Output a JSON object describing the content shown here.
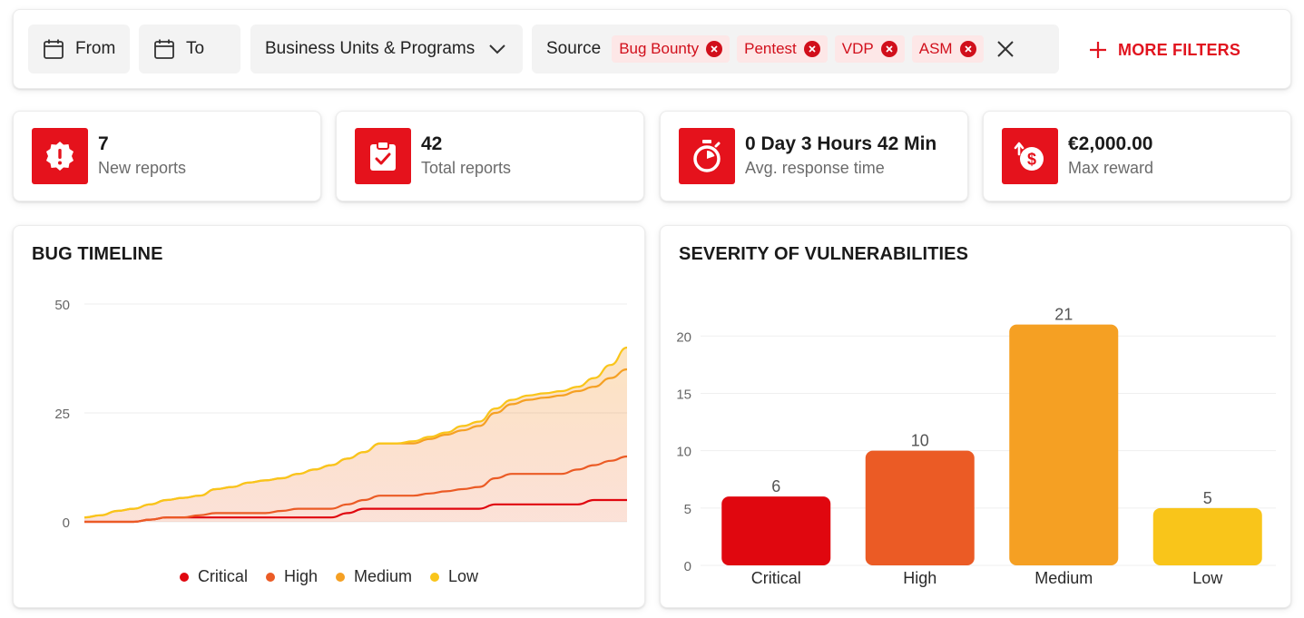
{
  "colors": {
    "accent": "#e5121c",
    "critical": "#e0070f",
    "high": "#eb5b25",
    "medium": "#f5a023",
    "low": "#f9c51a"
  },
  "filters": {
    "from_label": "From",
    "to_label": "To",
    "business_units_label": "Business Units & Programs",
    "source_label": "Source",
    "source_tags": [
      "Bug Bounty",
      "Pentest",
      "VDP",
      "ASM"
    ],
    "more_filters_label": "MORE FILTERS"
  },
  "stats": [
    {
      "value": "7",
      "label": "New reports",
      "icon": "alert-badge-icon"
    },
    {
      "value": "42",
      "label": "Total reports",
      "icon": "clipboard-check-icon"
    },
    {
      "value": "0 Day 3 Hours 42 Min",
      "label": "Avg. response time",
      "icon": "stopwatch-icon"
    },
    {
      "value": "€2,000.00",
      "label": "Max reward",
      "icon": "dollar-coin-icon"
    }
  ],
  "timeline": {
    "title": "BUG TIMELINE",
    "legend": [
      "Critical",
      "High",
      "Medium",
      "Low"
    ]
  },
  "severity": {
    "title": "SEVERITY OF VULNERABILITIES"
  },
  "chart_data": [
    {
      "type": "area",
      "title": "BUG TIMELINE",
      "xlabel": "",
      "ylabel": "",
      "ylim": [
        0,
        50
      ],
      "yticks": [
        0,
        25,
        50
      ],
      "x": [
        0,
        1,
        2,
        3,
        4,
        5,
        6,
        7,
        8,
        9,
        10,
        11,
        12,
        13,
        14,
        15,
        16,
        17,
        18,
        19,
        20,
        21,
        22,
        23,
        24,
        25,
        26,
        27,
        28,
        29,
        30,
        31,
        32,
        33
      ],
      "series": [
        {
          "name": "Critical",
          "values": [
            0,
            0,
            0,
            0,
            0.5,
            1,
            1,
            1,
            1,
            1,
            1,
            1,
            1,
            1,
            1,
            1,
            2,
            3,
            3,
            3,
            3,
            3,
            3,
            3,
            3,
            4,
            4,
            4,
            4,
            4,
            4,
            5,
            5,
            5
          ]
        },
        {
          "name": "High",
          "values": [
            0,
            0,
            0,
            0,
            0.5,
            1,
            1,
            1.5,
            2,
            2,
            2,
            2,
            2.5,
            3,
            3,
            3,
            4,
            5,
            6,
            6,
            6,
            6.5,
            7,
            7.5,
            8,
            10,
            11,
            11,
            11,
            11,
            12,
            13,
            14,
            15
          ]
        },
        {
          "name": "Medium",
          "values": [
            1,
            1.5,
            2.5,
            3,
            4,
            5,
            5.5,
            6,
            7.5,
            8,
            9,
            9.5,
            10,
            11,
            12,
            13,
            14.5,
            16,
            18,
            18,
            18,
            19,
            20,
            21,
            22,
            25,
            27,
            28,
            28.5,
            29,
            30,
            31,
            33,
            35
          ]
        },
        {
          "name": "Low",
          "values": [
            1,
            1.5,
            2.5,
            3,
            4,
            5,
            5.5,
            6,
            7.5,
            8,
            9,
            9.5,
            10,
            11,
            12,
            13,
            14.5,
            16,
            18,
            18,
            18.5,
            19.5,
            20.5,
            22,
            23,
            26,
            28,
            29,
            29.5,
            30,
            31,
            33,
            36,
            40
          ]
        }
      ],
      "legend": [
        "Critical",
        "High",
        "Medium",
        "Low"
      ]
    },
    {
      "type": "bar",
      "title": "SEVERITY OF VULNERABILITIES",
      "categories": [
        "Critical",
        "High",
        "Medium",
        "Low"
      ],
      "values": [
        6,
        10,
        21,
        5
      ],
      "yticks": [
        0,
        5,
        10,
        15,
        20
      ],
      "ylim": [
        0,
        22
      ],
      "xlabel": "",
      "ylabel": ""
    }
  ]
}
